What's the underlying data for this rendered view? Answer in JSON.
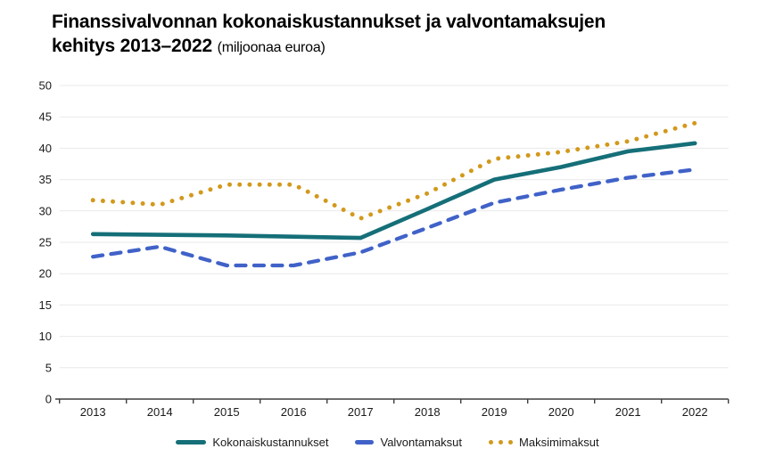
{
  "title": {
    "line1": "Finanssivalvonnan kokonaiskustannukset ja valvontamaksujen",
    "line2_bold": "kehitys 2013–2022",
    "line2_note": "(miljoonaa euroa)"
  },
  "colors": {
    "total_costs": "#156f78",
    "supervision_fees": "#4062c8",
    "max_fees": "#d2991c",
    "gridline": "#e9e9e9",
    "axis": "#3f3f3f",
    "tick_label": "#1a1a1a"
  },
  "chart_data": {
    "type": "line",
    "title": "Finanssivalvonnan kokonaiskustannukset ja valvontamaksujen kehitys 2013–2022",
    "subtitle": "(miljoonaa euroa)",
    "categories": [
      "2013",
      "2014",
      "2015",
      "2016",
      "2017",
      "2018",
      "2019",
      "2020",
      "2021",
      "2022"
    ],
    "series": [
      {
        "name": "Kokonaiskustannukset",
        "style": "solid",
        "color": "#156f78",
        "values": [
          26.3,
          26.2,
          26.1,
          25.9,
          25.7,
          30.3,
          35.0,
          37.0,
          39.5,
          40.8
        ]
      },
      {
        "name": "Valvontamaksut",
        "style": "dashed",
        "color": "#4062c8",
        "values": [
          22.7,
          24.3,
          21.3,
          21.3,
          23.4,
          27.3,
          31.3,
          33.4,
          35.3,
          36.6
        ]
      },
      {
        "name": "Maksimimaksut",
        "style": "dotted",
        "color": "#d2991c",
        "values": [
          31.7,
          31.0,
          34.2,
          34.2,
          28.8,
          32.8,
          38.3,
          39.4,
          41.1,
          44.0
        ]
      }
    ],
    "xlabel": "",
    "ylabel": "",
    "ylim": [
      0,
      50
    ],
    "ytick_step": 5,
    "yticks": [
      "0",
      "5",
      "10",
      "15",
      "20",
      "25",
      "30",
      "35",
      "40",
      "45",
      "50"
    ],
    "grid": true,
    "legend_position": "bottom"
  }
}
